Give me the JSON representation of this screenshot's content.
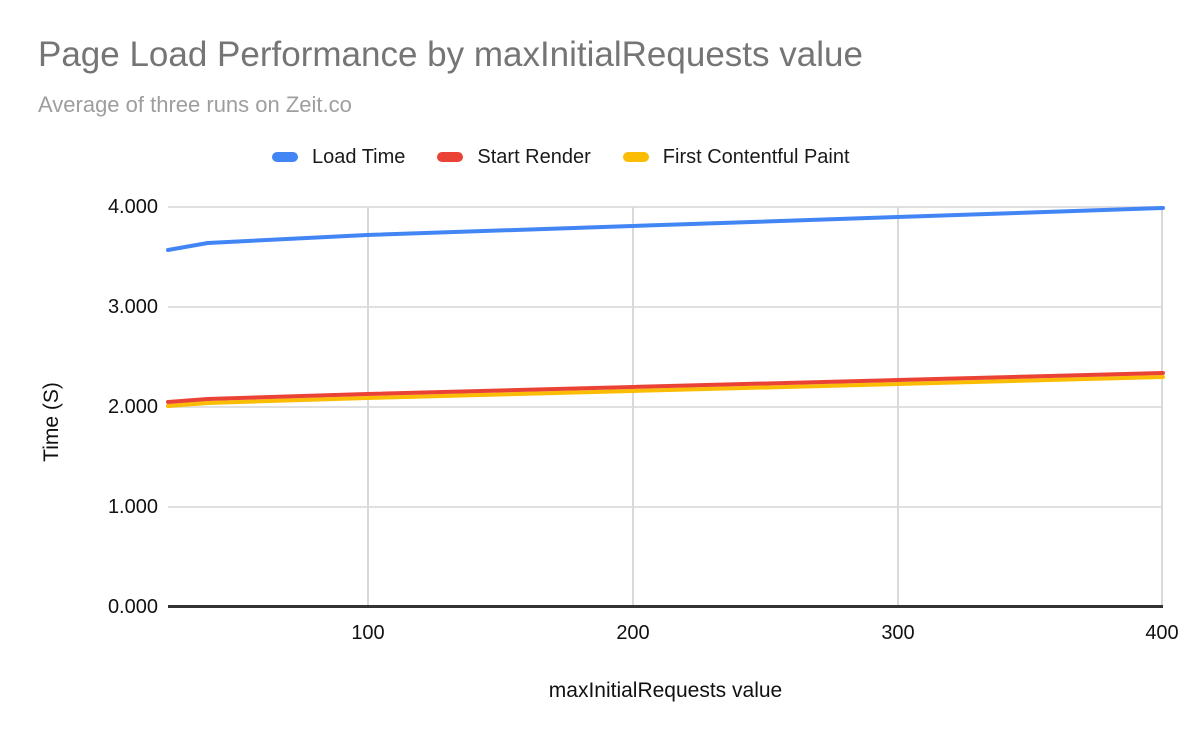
{
  "chart_data": {
    "type": "line",
    "title": "Page Load Performance by maxInitialRequests value",
    "subtitle": "Average of three runs on Zeit.co",
    "xlabel": "maxInitialRequests value",
    "ylabel": "Time (S)",
    "x": [
      25,
      40,
      100,
      200,
      300,
      400
    ],
    "series": [
      {
        "name": "Load Time",
        "color": "#4285F4",
        "values": [
          3.57,
          3.64,
          3.72,
          3.81,
          3.9,
          3.99
        ]
      },
      {
        "name": "Start Render",
        "color": "#EA4335",
        "values": [
          2.05,
          2.08,
          2.13,
          2.2,
          2.27,
          2.34
        ]
      },
      {
        "name": "First Contentful Paint",
        "color": "#FBBC04",
        "values": [
          2.01,
          2.04,
          2.09,
          2.16,
          2.23,
          2.3
        ]
      }
    ],
    "xlim": [
      25,
      400
    ],
    "ylim": [
      0,
      4
    ],
    "yticks": [
      "4.000",
      "3.000",
      "2.000",
      "1.000",
      "0.000"
    ],
    "ytick_values": [
      4,
      3,
      2,
      1,
      0
    ],
    "xticks": [
      "100",
      "200",
      "300",
      "400"
    ],
    "xtick_values": [
      100,
      200,
      300,
      400
    ],
    "grid": true,
    "legend_position": "top",
    "background_color": "#ffffff",
    "gridline_color": "#e0e0e0",
    "baseline_color": "#333333",
    "title_color": "#757575",
    "subtitle_color": "#9e9e9e"
  }
}
